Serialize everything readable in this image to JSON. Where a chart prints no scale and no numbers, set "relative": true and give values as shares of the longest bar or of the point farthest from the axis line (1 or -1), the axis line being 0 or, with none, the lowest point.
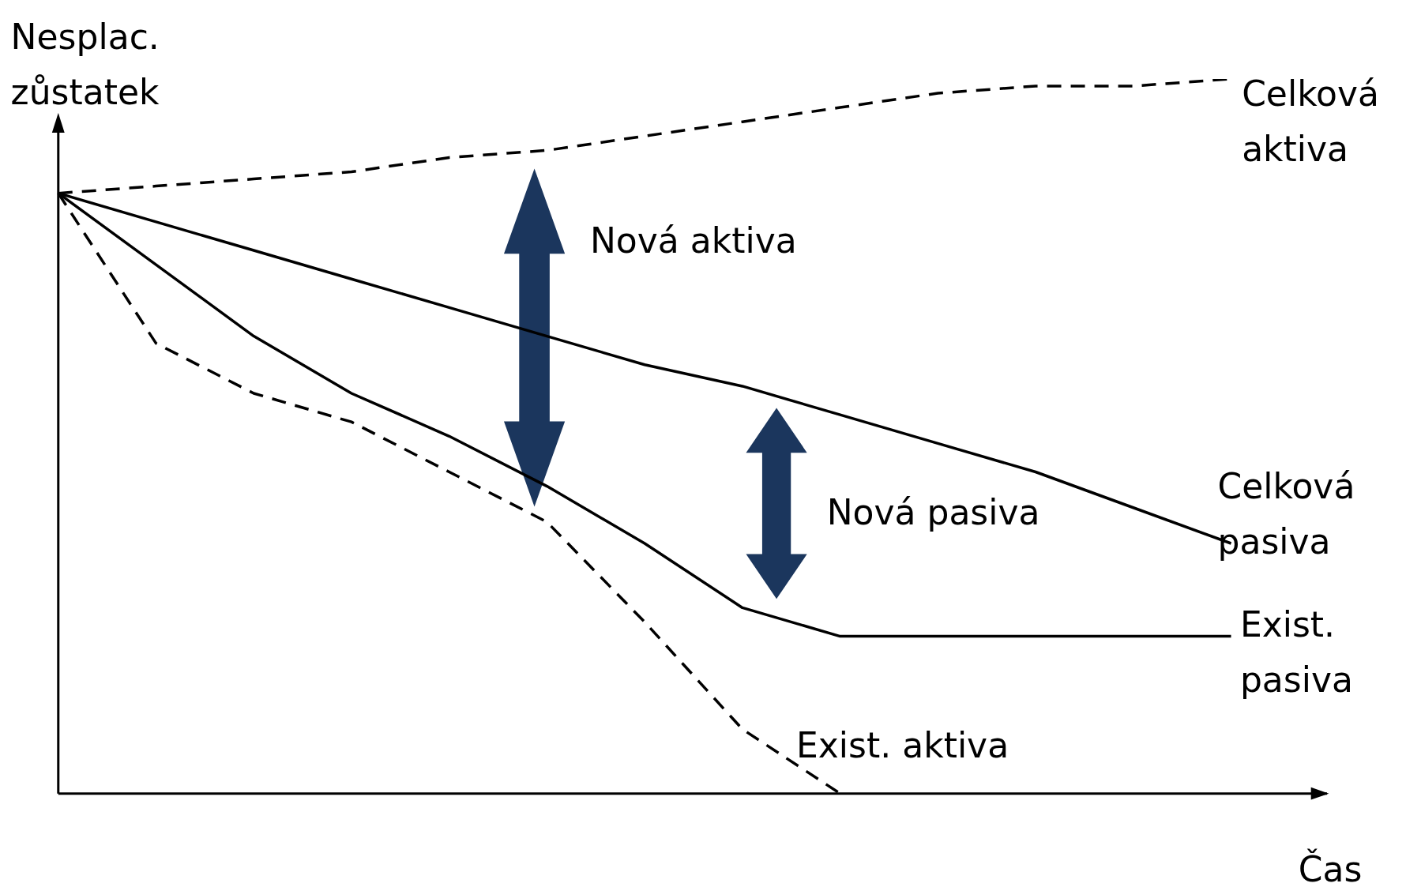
{
  "chart_data": {
    "type": "line",
    "relative": true,
    "xlabel": "Čas",
    "ylabel": "Nesplac. zůstatek",
    "marker": "none",
    "categories": [
      null,
      null,
      null,
      null,
      null,
      null,
      null,
      null,
      null,
      null,
      null,
      null,
      null
    ],
    "series": [
      {
        "name": "Celková aktiva",
        "color": "#000000",
        "line_style": "dashed",
        "values": [
          0.84,
          0.85,
          0.86,
          0.87,
          0.89,
          0.9,
          0.92,
          0.94,
          0.96,
          0.98,
          0.99,
          0.99,
          1
        ]
      },
      {
        "name": "Celková pasiva",
        "color": "#000000",
        "line_style": "solid",
        "values": [
          0.84,
          0.8,
          0.76,
          0.72,
          0.68,
          0.64,
          0.6,
          0.57,
          0.53,
          0.49,
          0.45,
          0.4,
          0.35
        ]
      },
      {
        "name": "Exist. pasiva",
        "color": "#000000",
        "line_style": "solid",
        "values": [
          0.84,
          0.74,
          0.64,
          0.56,
          0.5,
          0.43,
          0.35,
          0.26,
          0.22,
          0.22,
          0.22,
          0.22,
          0.22
        ]
      },
      {
        "name": "Exist. aktiva",
        "color": "#000000",
        "line_style": "dashed",
        "values": [
          0.84,
          0.63,
          0.56,
          0.52,
          0.45,
          0.38,
          0.24,
          0.09,
          0,
          null,
          null,
          null,
          null
        ]
      }
    ],
    "annotations": [
      "Nová aktiva",
      "Nová pasiva"
    ]
  }
}
